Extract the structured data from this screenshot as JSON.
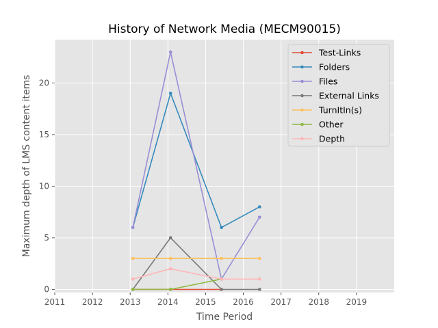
{
  "chart_data": {
    "type": "line",
    "title": "History of Network Media (MECM90015)",
    "xlabel": "Time Period",
    "ylabel": "Maximum depth of LMS content items",
    "xlim": [
      2011,
      2020
    ],
    "ylim": [
      -0.3,
      24.2
    ],
    "xticks": [
      2011,
      2012,
      2013,
      2014,
      2015,
      2016,
      2017,
      2018,
      2019
    ],
    "yticks": [
      0,
      5,
      10,
      15,
      20
    ],
    "grid": true,
    "legend_position": "top-right",
    "x": [
      2013.07,
      2014.07,
      2015.42,
      2016.43
    ],
    "series": [
      {
        "name": "Test-Links",
        "color": "#e24a33",
        "values": [
          0,
          0,
          0,
          null
        ]
      },
      {
        "name": "Folders",
        "color": "#348abd",
        "values": [
          6,
          19,
          6,
          8
        ]
      },
      {
        "name": "Files",
        "color": "#988ed5",
        "values": [
          6,
          23,
          1,
          7
        ]
      },
      {
        "name": "External Links",
        "color": "#777777",
        "values": [
          0,
          5,
          0,
          0
        ]
      },
      {
        "name": "TurnItIn(s)",
        "color": "#fbc15e",
        "values": [
          3,
          3,
          3,
          3
        ]
      },
      {
        "name": "Other",
        "color": "#8eba42",
        "values": [
          0,
          0,
          1,
          null
        ]
      },
      {
        "name": "Depth",
        "color": "#ffb5b8",
        "values": [
          1,
          2,
          1,
          1
        ]
      }
    ]
  }
}
